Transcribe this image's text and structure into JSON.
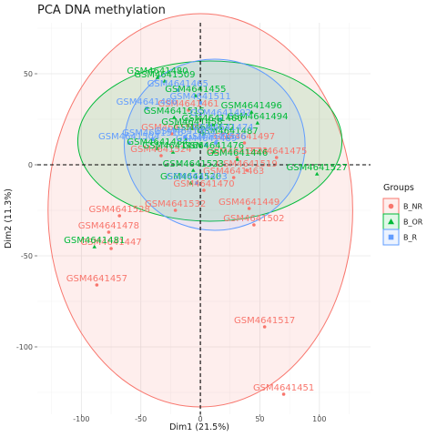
{
  "chart_data": {
    "type": "scatter",
    "title": "PCA DNA methylation",
    "xlabel": "Dim1 (21.5%)",
    "ylabel": "Dim2 (11.3%)",
    "xlim": [
      -137,
      143
    ],
    "ylim": [
      -137,
      78
    ],
    "x_ticks": [
      -100,
      -50,
      0,
      50,
      100
    ],
    "y_ticks": [
      50,
      0,
      -50,
      -100
    ],
    "x_tick_labels": [
      "-100",
      "-50",
      "0",
      "50",
      "100"
    ],
    "y_tick_labels": [
      "50",
      "0",
      "-50",
      "-100"
    ],
    "grid": true,
    "reference_lines": {
      "x": 0,
      "y": 0
    },
    "legend": {
      "title": "Groups",
      "position": "right",
      "entries": [
        {
          "label": "B_NR",
          "color": "#F8766D",
          "shape": "circle"
        },
        {
          "label": "B_OR",
          "color": "#00BA38",
          "shape": "triangle"
        },
        {
          "label": "B_R",
          "color": "#619CFF",
          "shape": "square"
        }
      ]
    },
    "ellipses": [
      {
        "group": "B_NR",
        "color": "#F8766D",
        "center": [
          0,
          -25
        ],
        "rx": 128,
        "ry": 108
      },
      {
        "group": "B_OR",
        "color": "#00BA38",
        "center": [
          8,
          13
        ],
        "rx": 111,
        "ry": 44
      },
      {
        "group": "B_R",
        "color": "#619CFF",
        "center": [
          12,
          11
        ],
        "rx": 76,
        "ry": 47
      }
    ],
    "series": [
      {
        "name": "B_NR",
        "color": "#F8766D",
        "points": [
          {
            "label": "GSM4641451",
            "x": 70,
            "y": -126
          },
          {
            "label": "GSM4641517",
            "x": 54,
            "y": -89
          },
          {
            "label": "GSM4641457",
            "x": -87,
            "y": -66
          },
          {
            "label": "GSM4641478",
            "x": -77,
            "y": -37
          },
          {
            "label": "GSM4641447",
            "x": -75,
            "y": -46
          },
          {
            "label": "GSM4641528",
            "x": -68,
            "y": -28
          },
          {
            "label": "GSM4641502",
            "x": 45,
            "y": -33
          },
          {
            "label": "GSM4641449",
            "x": 41,
            "y": -24
          },
          {
            "label": "GSM4641532",
            "x": -21,
            "y": -25
          },
          {
            "label": "GSM4641470",
            "x": 3,
            "y": -14
          },
          {
            "label": "GSM4641497",
            "x": 37,
            "y": 12
          },
          {
            "label": "GSM4641475",
            "x": 64,
            "y": 4
          },
          {
            "label": "GSM4641519",
            "x": 39,
            "y": -3
          },
          {
            "label": "GSM4641463",
            "x": 28,
            "y": -7
          },
          {
            "label": "GSM4641524",
            "x": -33,
            "y": 5
          },
          {
            "label": "GSM4641500",
            "x": -24,
            "y": 17
          },
          {
            "label": "GSM4641513",
            "x": 31,
            "y": 4
          },
          {
            "label": "GSM4641461",
            "x": -10,
            "y": 30
          }
        ]
      },
      {
        "name": "B_OR",
        "color": "#00BA38",
        "points": [
          {
            "label": "GSM4641527",
            "x": 98,
            "y": -5
          },
          {
            "label": "GSM4641480",
            "x": -36,
            "y": 48
          },
          {
            "label": "GSM4641509",
            "x": -30,
            "y": 46
          },
          {
            "label": "GSM4641455",
            "x": -4,
            "y": 38
          },
          {
            "label": "GSM4641496",
            "x": 43,
            "y": 29
          },
          {
            "label": "GSM4641494",
            "x": 48,
            "y": 23
          },
          {
            "label": "GSM4641487",
            "x": 23,
            "y": 15
          },
          {
            "label": "GSM4641515",
            "x": -22,
            "y": 26
          },
          {
            "label": "GSM4641446",
            "x": 31,
            "y": 3
          },
          {
            "label": "GSM4641458",
            "x": -7,
            "y": 20
          },
          {
            "label": "GSM4641472",
            "x": 3,
            "y": 17
          },
          {
            "label": "GSM4641484",
            "x": -36,
            "y": 9
          },
          {
            "label": "GSM4641466",
            "x": -23,
            "y": 7
          },
          {
            "label": "GSM4641476",
            "x": 11,
            "y": 7
          },
          {
            "label": "GSM4641523",
            "x": -6,
            "y": -3
          },
          {
            "label": "GSM4641481",
            "x": -89,
            "y": -45
          },
          {
            "label": "GSM4641460",
            "x": 10,
            "y": 22
          },
          {
            "label": "GSM4641520",
            "x": -8,
            "y": -10
          }
        ]
      },
      {
        "name": "B_R",
        "color": "#619CFF",
        "points": [
          {
            "label": "GSM4641465",
            "x": -19,
            "y": 41
          },
          {
            "label": "GSM4641511",
            "x": 0,
            "y": 34
          },
          {
            "label": "GSM4641486",
            "x": -45,
            "y": 31
          },
          {
            "label": "GSM4641492",
            "x": 17,
            "y": 25
          },
          {
            "label": "GSM4641433",
            "x": -3,
            "y": -10
          },
          {
            "label": "GSM4641504",
            "x": -60,
            "y": 12
          },
          {
            "label": "GSM4641516",
            "x": -40,
            "y": 14
          },
          {
            "label": "GSM4641489",
            "x": 5,
            "y": 11
          },
          {
            "label": "GSM4641469",
            "x": -13,
            "y": 15
          },
          {
            "label": "GSM4641536",
            "x": 13,
            "y": 12
          },
          {
            "label": "GSM4641474",
            "x": 19,
            "y": 17
          }
        ]
      }
    ]
  }
}
